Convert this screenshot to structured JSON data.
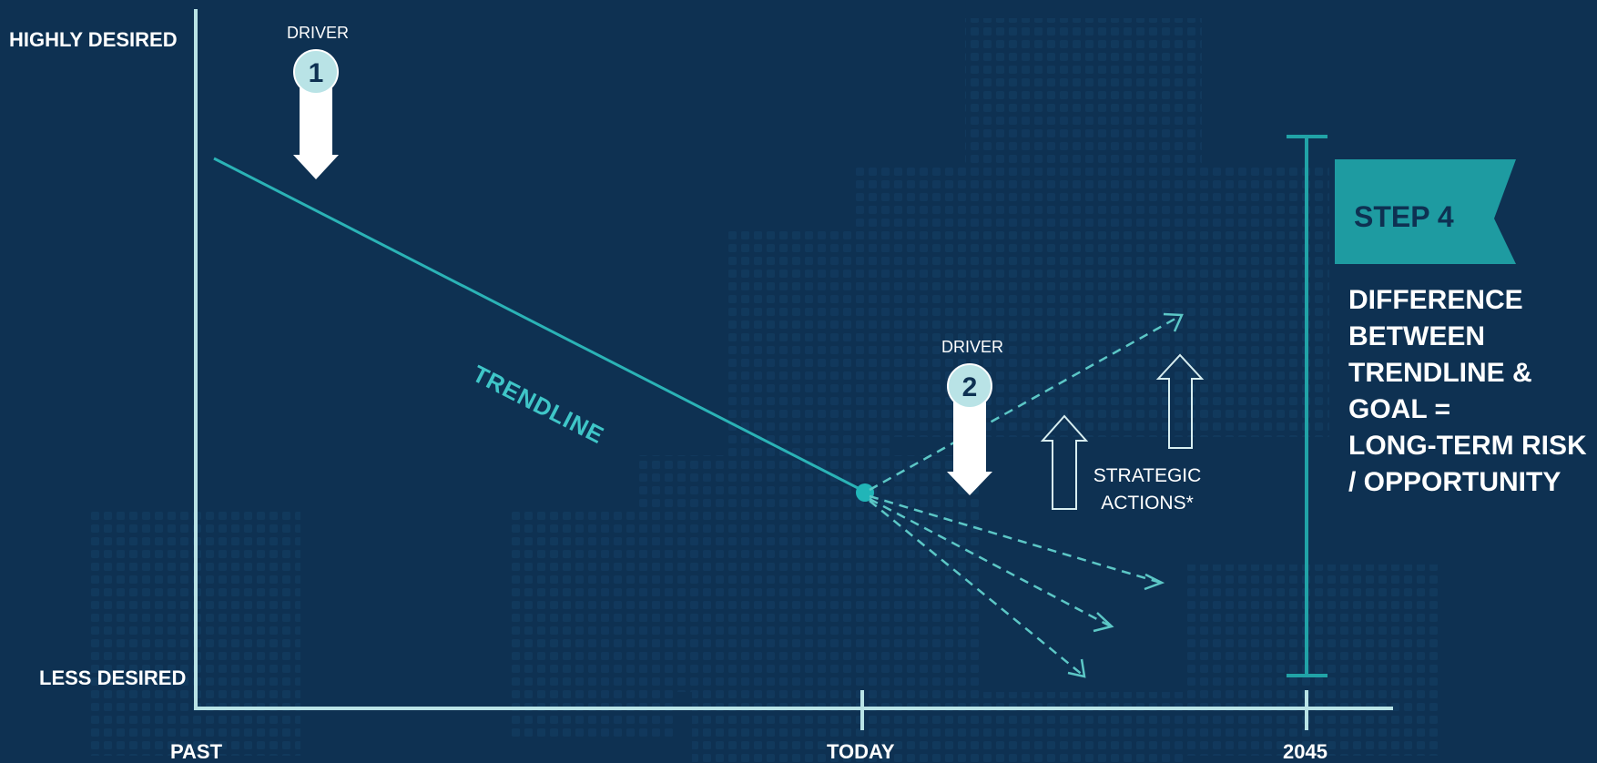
{
  "axes": {
    "y_top_label": "HIGHLY DESIRED",
    "y_bottom_label": "LESS DESIRED",
    "x_ticks": [
      "PAST",
      "TODAY",
      "2045"
    ]
  },
  "trendline_label": "TRENDLINE",
  "drivers": [
    {
      "label": "DRIVER",
      "number": "1",
      "direction": "down"
    },
    {
      "label": "DRIVER",
      "number": "2",
      "direction": "down"
    }
  ],
  "strategic_actions": {
    "lines": [
      "STRATEGIC",
      "ACTIONS*"
    ]
  },
  "step_banner": {
    "label": "STEP 4"
  },
  "result": {
    "lines": [
      "DIFFERENCE",
      "BETWEEN",
      "TRENDLINE &",
      "GOAL =",
      "LONG-TERM RISK",
      "/ OPPORTUNITY"
    ]
  },
  "colors": {
    "background": "#0e3152",
    "axis": "#b9e3e6",
    "teal": "#21a3a7",
    "trend": "#2bb3b6",
    "dashed": "#5cc7c6",
    "text": "#ffffff"
  }
}
